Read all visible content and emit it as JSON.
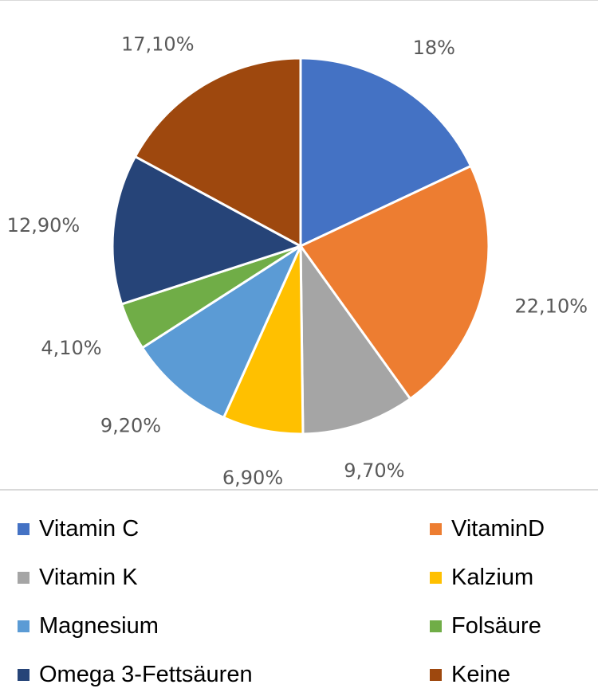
{
  "chart_data": {
    "type": "pie",
    "slices": [
      {
        "name": "Vitamin C",
        "value": 18.0,
        "label": "18%",
        "color": "#4472C4"
      },
      {
        "name": "VitaminD",
        "value": 22.1,
        "label": "22,10%",
        "color": "#ED7D31"
      },
      {
        "name": "Vitamin K",
        "value": 9.7,
        "label": "9,70%",
        "color": "#A5A5A5"
      },
      {
        "name": "Kalzium",
        "value": 6.9,
        "label": "6,90%",
        "color": "#FFC000"
      },
      {
        "name": "Magnesium",
        "value": 9.2,
        "label": "9,20%",
        "color": "#5B9BD5"
      },
      {
        "name": "Folsäure",
        "value": 4.1,
        "label": "4,10%",
        "color": "#70AD47"
      },
      {
        "name": "Omega 3-Fettsäuren",
        "value": 12.9,
        "label": "12,90%",
        "color": "#264478"
      },
      {
        "name": "Keine",
        "value": 17.1,
        "label": "17,10%",
        "color": "#9E480E"
      }
    ],
    "legend_position": "bottom",
    "start_angle": "12 o'clock",
    "direction": "clockwise"
  }
}
